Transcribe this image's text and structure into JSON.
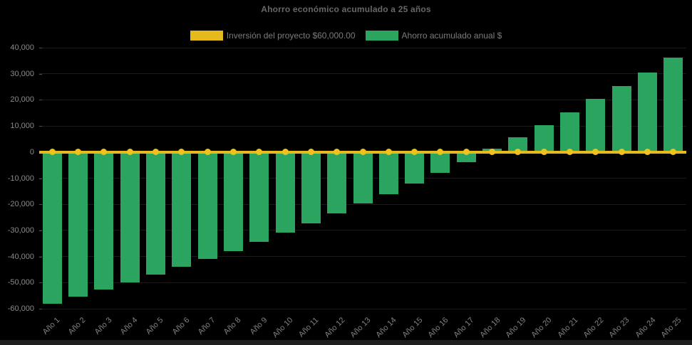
{
  "title": "Ahorro económico acumulado a 25 años",
  "legend": [
    {
      "label": "Inversión del proyecto $60,000.00",
      "color": "#e7ba1b"
    },
    {
      "label": "Ahorro acumulado anual $",
      "color": "#2ba45f"
    }
  ],
  "colors": {
    "background": "#000000",
    "bar_green": "#2ba45f",
    "line_yellow": "#e7ba1b",
    "marker_yellow": "#eec31f",
    "title_text": "#676767",
    "axis_text": "#8a8a8a"
  },
  "chart_data": {
    "type": "bar",
    "title": "Ahorro económico acumulado a 25 años",
    "xlabel": "",
    "ylabel": "",
    "ylim": [
      -60000,
      40000
    ],
    "ytick_step": 10000,
    "ytick_labels": [
      "40,000",
      "30,000",
      "20,000",
      "10,000",
      "0",
      "-10,000",
      "-20,000",
      "-30,000",
      "-40,000",
      "-50,000",
      "-60,000"
    ],
    "grid": "horizontal-faint",
    "legend_position": "top",
    "categories": [
      "Año 1",
      "Año 2",
      "Año 3",
      "Año 4",
      "Año 5",
      "Año 6",
      "Año 7",
      "Año 8",
      "Año 9",
      "Año 10",
      "Año 11",
      "Año 12",
      "Año 13",
      "Año 14",
      "Año 15",
      "Año 16",
      "Año 17",
      "Año 18",
      "Año 19",
      "Año 20",
      "Año 21",
      "Año 22",
      "Año 23",
      "Año 24",
      "Año 25"
    ],
    "series": [
      {
        "name": "Inversión del proyecto $60,000.00",
        "type": "line-with-markers",
        "color": "#e7ba1b",
        "values": [
          0,
          0,
          0,
          0,
          0,
          0,
          0,
          0,
          0,
          0,
          0,
          0,
          0,
          0,
          0,
          0,
          0,
          0,
          0,
          0,
          0,
          0,
          0,
          0,
          0
        ]
      },
      {
        "name": "Ahorro acumulado anual $",
        "type": "bar",
        "color": "#2ba45f",
        "values": [
          -58000,
          -55400,
          -52700,
          -49900,
          -46900,
          -43900,
          -40900,
          -37900,
          -34500,
          -30900,
          -27200,
          -23400,
          -19700,
          -16000,
          -12100,
          -7900,
          -3800,
          1200,
          5800,
          10400,
          15300,
          20300,
          25400,
          30500,
          36100
        ]
      }
    ]
  }
}
